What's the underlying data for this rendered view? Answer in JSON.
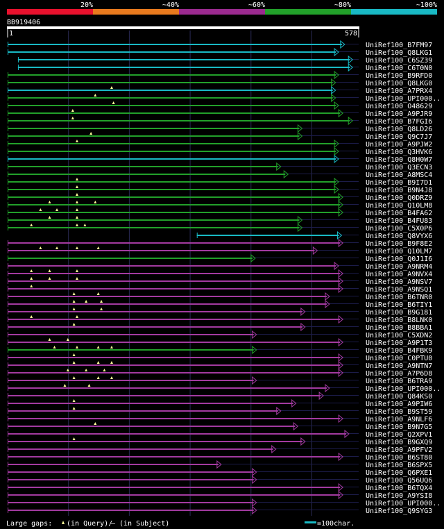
{
  "legend": {
    "ticks": [
      "20%",
      "~40%",
      "~60%",
      "~80%",
      "~100%"
    ],
    "colors": [
      "#e8112d",
      "#e87a1e",
      "#9b2a8f",
      "#22a02a",
      "#19b9c4"
    ]
  },
  "query": {
    "id": "BB919406",
    "start": "1",
    "end": "578",
    "length": 578
  },
  "scale_units": "100char.",
  "footer": {
    "large_gaps": "Large gaps:",
    "in_query": "(in Query)/",
    "in_subject": "(in Subject)",
    "dash": "–",
    "scale_label": "=100char."
  },
  "colors": {
    "cyan": "#19b9c4",
    "green": "#22a02a",
    "purple": "#a33aa0",
    "grid": "#2a2a55",
    "ruler": "#ffffff"
  },
  "hits": [
    {
      "name": "UniRef100_B7FM97",
      "color": "cyan",
      "start": 1,
      "end": 578,
      "fill_end": 555
    },
    {
      "name": "UniRef100_Q8LKG1",
      "color": "cyan",
      "start": 1,
      "end": 578,
      "fill_end": 545
    },
    {
      "name": "UniRef100_C6SZ39",
      "color": "cyan",
      "start": 18,
      "end": 578,
      "fill_end": 568
    },
    {
      "name": "UniRef100_C6T0N0",
      "color": "cyan",
      "start": 18,
      "end": 578,
      "fill_end": 568
    },
    {
      "name": "UniRef100_B9RFD0",
      "color": "green",
      "start": 1,
      "end": 578,
      "fill_end": 545
    },
    {
      "name": "UniRef100_Q8LKG0",
      "color": "green",
      "start": 1,
      "end": 578,
      "fill_end": 540
    },
    {
      "name": "UniRef100_A7PRX4",
      "color": "cyan",
      "start": 1,
      "end": 578,
      "fill_end": 540,
      "gaps": [
        172
      ]
    },
    {
      "name": "UniRef100_UPI000..",
      "color": "green",
      "start": 1,
      "end": 578,
      "fill_end": 540,
      "gaps": [
        145
      ]
    },
    {
      "name": "UniRef100_O48629",
      "color": "green",
      "start": 1,
      "end": 578,
      "fill_end": 545,
      "gaps": [
        175
      ]
    },
    {
      "name": "UniRef100_A9PJR9",
      "color": "green",
      "start": 1,
      "end": 578,
      "fill_end": 552,
      "gaps": [
        108
      ]
    },
    {
      "name": "UniRef100_B7FGI6",
      "color": "green",
      "start": 1,
      "end": 578,
      "fill_end": 568,
      "gaps": [
        108
      ]
    },
    {
      "name": "UniRef100_Q8LD26",
      "color": "green",
      "start": 1,
      "end": 578,
      "fill_end": 485
    },
    {
      "name": "UniRef100_Q9C7J7",
      "color": "green",
      "start": 1,
      "end": 578,
      "fill_end": 485,
      "gaps": [
        138
      ]
    },
    {
      "name": "UniRef100_A9PJW2",
      "color": "green",
      "start": 1,
      "end": 578,
      "fill_end": 545,
      "gaps": [
        115
      ]
    },
    {
      "name": "UniRef100_Q3HVK6",
      "color": "green",
      "start": 1,
      "end": 578,
      "fill_end": 545
    },
    {
      "name": "UniRef100_Q8H0W7",
      "color": "cyan",
      "start": 1,
      "end": 578,
      "fill_end": 545
    },
    {
      "name": "UniRef100_Q3ECN3",
      "color": "green",
      "start": 1,
      "end": 578,
      "fill_end": 450
    },
    {
      "name": "UniRef100_A8MSC4",
      "color": "green",
      "start": 1,
      "end": 578,
      "fill_end": 462
    },
    {
      "name": "UniRef100_B9I7D1",
      "color": "green",
      "start": 1,
      "end": 578,
      "fill_end": 545,
      "gaps": [
        115
      ]
    },
    {
      "name": "UniRef100_B9N4J8",
      "color": "green",
      "start": 1,
      "end": 578,
      "fill_end": 545,
      "gaps": [
        115
      ]
    },
    {
      "name": "UniRef100_Q0DRZ9",
      "color": "green",
      "start": 1,
      "end": 578,
      "fill_end": 552,
      "gaps": [
        115
      ]
    },
    {
      "name": "UniRef100_Q10LM8",
      "color": "green",
      "start": 1,
      "end": 578,
      "fill_end": 552,
      "gaps": [
        70,
        115,
        145
      ]
    },
    {
      "name": "UniRef100_B4FA62",
      "color": "green",
      "start": 1,
      "end": 578,
      "fill_end": 552,
      "gaps": [
        55,
        82,
        115
      ]
    },
    {
      "name": "UniRef100_B4FU83",
      "color": "green",
      "start": 1,
      "end": 578,
      "fill_end": 485,
      "gaps": [
        70,
        115
      ]
    },
    {
      "name": "UniRef100_C5X0P6",
      "color": "green",
      "start": 1,
      "end": 578,
      "fill_end": 485,
      "gaps": [
        40,
        115,
        128
      ]
    },
    {
      "name": "UniRef100_Q8VYX6",
      "color": "cyan",
      "start": 312,
      "end": 578,
      "fill_end": 550
    },
    {
      "name": "UniRef100_B9F8E2",
      "color": "purple",
      "start": 1,
      "end": 578,
      "fill_end": 552
    },
    {
      "name": "UniRef100_Q10LM7",
      "color": "purple",
      "start": 1,
      "end": 578,
      "fill_end": 510,
      "gaps": [
        55,
        82,
        115,
        150
      ]
    },
    {
      "name": "UniRef100_Q0J1I6",
      "color": "green",
      "start": 1,
      "end": 578,
      "fill_end": 408
    },
    {
      "name": "UniRef100_A9NRM4",
      "color": "purple",
      "start": 1,
      "end": 578,
      "fill_end": 545
    },
    {
      "name": "UniRef100_A9NVX4",
      "color": "purple",
      "start": 1,
      "end": 578,
      "fill_end": 552,
      "gaps": [
        40,
        70,
        115
      ]
    },
    {
      "name": "UniRef100_A9NSV7",
      "color": "purple",
      "start": 1,
      "end": 578,
      "fill_end": 552,
      "gaps": [
        40,
        70,
        115
      ]
    },
    {
      "name": "UniRef100_A9NSQ1",
      "color": "purple",
      "start": 1,
      "end": 578,
      "fill_end": 552,
      "gaps": [
        40
      ]
    },
    {
      "name": "UniRef100_B6TNR0",
      "color": "purple",
      "start": 1,
      "end": 578,
      "fill_end": 530,
      "gaps": [
        110,
        150
      ]
    },
    {
      "name": "UniRef100_B6TIY1",
      "color": "purple",
      "start": 1,
      "end": 578,
      "fill_end": 530,
      "gaps": [
        110,
        130,
        155
      ]
    },
    {
      "name": "UniRef100_B9G181",
      "color": "purple",
      "start": 1,
      "end": 578,
      "fill_end": 490,
      "gaps": [
        110,
        155
      ]
    },
    {
      "name": "UniRef100_B8LNK0",
      "color": "purple",
      "start": 1,
      "end": 578,
      "fill_end": 552,
      "gaps": [
        40,
        115
      ]
    },
    {
      "name": "UniRef100_B8BBA1",
      "color": "purple",
      "start": 1,
      "end": 578,
      "fill_end": 490,
      "gaps": [
        110
      ]
    },
    {
      "name": "UniRef100_C5XDN2",
      "color": "purple",
      "start": 1,
      "end": 578,
      "fill_end": 410
    },
    {
      "name": "UniRef100_A9P1T3",
      "color": "purple",
      "start": 1,
      "end": 578,
      "fill_end": 552,
      "gaps": [
        70,
        100
      ]
    },
    {
      "name": "UniRef100_B4FBK9",
      "color": "green",
      "start": 1,
      "end": 578,
      "fill_end": 410,
      "gaps": [
        78,
        115,
        150,
        172
      ]
    },
    {
      "name": "UniRef100_C0PTU0",
      "color": "purple",
      "start": 1,
      "end": 578,
      "fill_end": 552,
      "gaps": [
        110
      ]
    },
    {
      "name": "UniRef100_A9NTN7",
      "color": "purple",
      "start": 1,
      "end": 578,
      "fill_end": 552,
      "gaps": [
        110,
        150,
        172
      ]
    },
    {
      "name": "UniRef100_A7P6D8",
      "color": "purple",
      "start": 1,
      "end": 578,
      "fill_end": 552,
      "gaps": [
        100,
        130,
        160
      ]
    },
    {
      "name": "UniRef100_B6TRA9",
      "color": "purple",
      "start": 1,
      "end": 578,
      "fill_end": 410,
      "gaps": [
        110,
        150,
        172
      ]
    },
    {
      "name": "UniRef100_UPI000..",
      "color": "purple",
      "start": 1,
      "end": 578,
      "fill_end": 530,
      "gaps": [
        95,
        135
      ]
    },
    {
      "name": "UniRef100_Q84KS0",
      "color": "purple",
      "start": 1,
      "end": 578,
      "fill_end": 520
    },
    {
      "name": "UniRef100_A9PIW6",
      "color": "purple",
      "start": 1,
      "end": 578,
      "fill_end": 475,
      "gaps": [
        110
      ]
    },
    {
      "name": "UniRef100_B9ST59",
      "color": "purple",
      "start": 1,
      "end": 578,
      "fill_end": 450,
      "gaps": [
        110
      ]
    },
    {
      "name": "UniRef100_A9NLF6",
      "color": "purple",
      "start": 1,
      "end": 578,
      "fill_end": 552
    },
    {
      "name": "UniRef100_B9N7G5",
      "color": "purple",
      "start": 1,
      "end": 578,
      "fill_end": 478,
      "gaps": [
        145
      ]
    },
    {
      "name": "UniRef100_Q2XPV1",
      "color": "purple",
      "start": 1,
      "end": 578,
      "fill_end": 562
    },
    {
      "name": "UniRef100_B9GXQ9",
      "color": "purple",
      "start": 1,
      "end": 578,
      "fill_end": 490,
      "gaps": [
        110
      ]
    },
    {
      "name": "UniRef100_A9PFV2",
      "color": "purple",
      "start": 1,
      "end": 578,
      "fill_end": 442
    },
    {
      "name": "UniRef100_B6ST80",
      "color": "purple",
      "start": 1,
      "end": 578,
      "fill_end": 552
    },
    {
      "name": "UniRef100_B6SPX5",
      "color": "purple",
      "start": 1,
      "end": 578,
      "fill_end": 352
    },
    {
      "name": "UniRef100_Q6PXE1",
      "color": "purple",
      "start": 1,
      "end": 578,
      "fill_end": 410
    },
    {
      "name": "UniRef100_Q56UQ6",
      "color": "purple",
      "start": 1,
      "end": 578,
      "fill_end": 410
    },
    {
      "name": "UniRef100_B6TQX4",
      "color": "purple",
      "start": 1,
      "end": 578,
      "fill_end": 552
    },
    {
      "name": "UniRef100_A9YSI8",
      "color": "purple",
      "start": 1,
      "end": 578,
      "fill_end": 552
    },
    {
      "name": "UniRef100_UPI000..",
      "color": "purple",
      "start": 1,
      "end": 578,
      "fill_end": 410
    },
    {
      "name": "UniRef100_Q9SYG3",
      "color": "purple",
      "start": 1,
      "end": 578,
      "fill_end": 410
    }
  ]
}
